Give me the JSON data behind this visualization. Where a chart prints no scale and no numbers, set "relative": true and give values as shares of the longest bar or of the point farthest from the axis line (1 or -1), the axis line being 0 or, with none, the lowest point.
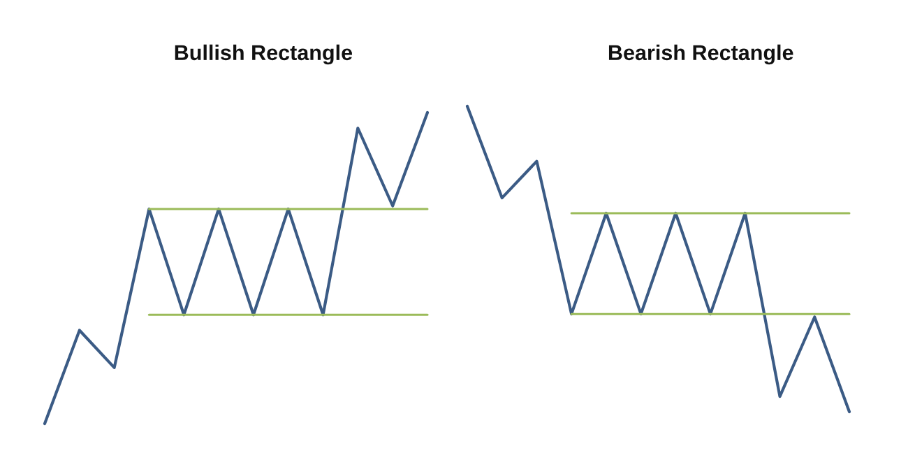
{
  "chart_data": [
    {
      "type": "line",
      "title": "Bullish Rectangle",
      "relative": true,
      "marker": "none",
      "line_style": "solid",
      "categories": [
        null,
        null,
        null,
        null,
        null,
        null,
        null,
        null,
        null,
        null,
        null,
        null
      ],
      "series": [
        {
          "color": "#3b5b85",
          "values": [
            0,
            0.3,
            0.18,
            0.69,
            0.35,
            0.69,
            0.35,
            0.69,
            0.35,
            0.95,
            0.7,
            1
          ]
        },
        {
          "color": "#9bbb59",
          "values": [
            null,
            null,
            null,
            0.69,
            0.69,
            0.69,
            0.69,
            0.69,
            0.69,
            0.69,
            0.69,
            0.69
          ]
        },
        {
          "color": "#9bbb59",
          "values": [
            null,
            null,
            null,
            0.35,
            0.35,
            0.35,
            0.35,
            0.35,
            0.35,
            0.35,
            0.35,
            0.35
          ]
        }
      ]
    },
    {
      "type": "line",
      "title": "Bearish Rectangle",
      "relative": true,
      "marker": "none",
      "line_style": "solid",
      "categories": [
        null,
        null,
        null,
        null,
        null,
        null,
        null,
        null,
        null,
        null,
        null,
        null
      ],
      "series": [
        {
          "color": "#3b5b85",
          "values": [
            1,
            0.7,
            0.82,
            0.32,
            0.65,
            0.32,
            0.65,
            0.32,
            0.65,
            0.05,
            0.31,
            0
          ]
        },
        {
          "color": "#9bbb59",
          "values": [
            null,
            null,
            null,
            0.65,
            0.65,
            0.65,
            0.65,
            0.65,
            0.65,
            0.65,
            0.65,
            0.65
          ]
        },
        {
          "color": "#9bbb59",
          "values": [
            null,
            null,
            null,
            0.32,
            0.32,
            0.32,
            0.32,
            0.32,
            0.32,
            0.32,
            0.32,
            0.32
          ]
        }
      ]
    }
  ]
}
